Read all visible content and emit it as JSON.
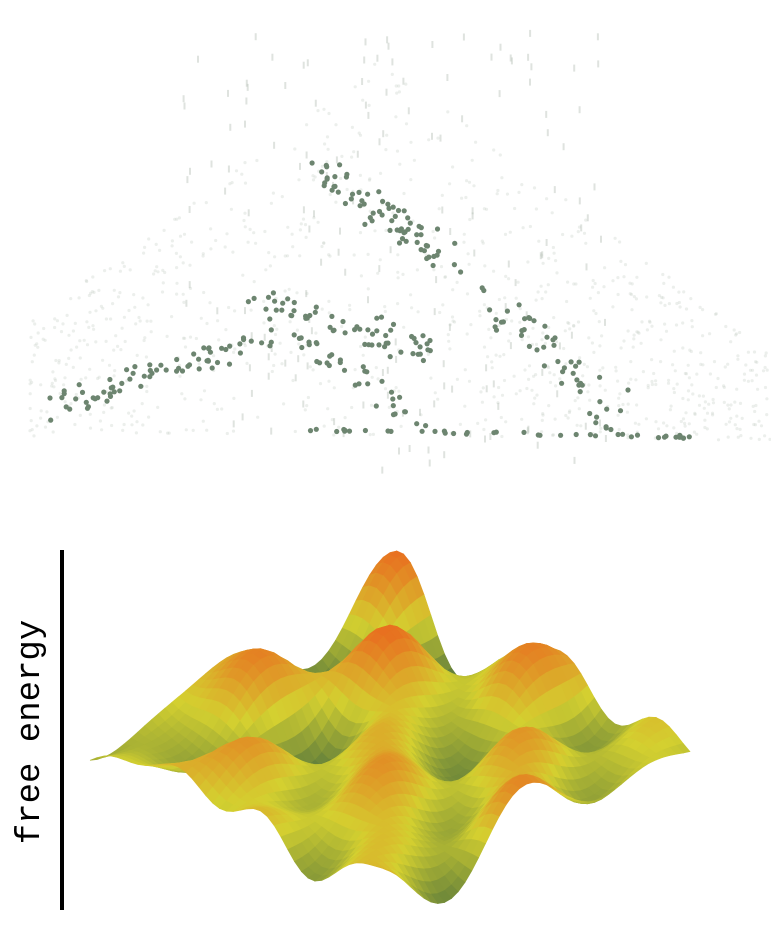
{
  "axis_label": "free energy"
}
